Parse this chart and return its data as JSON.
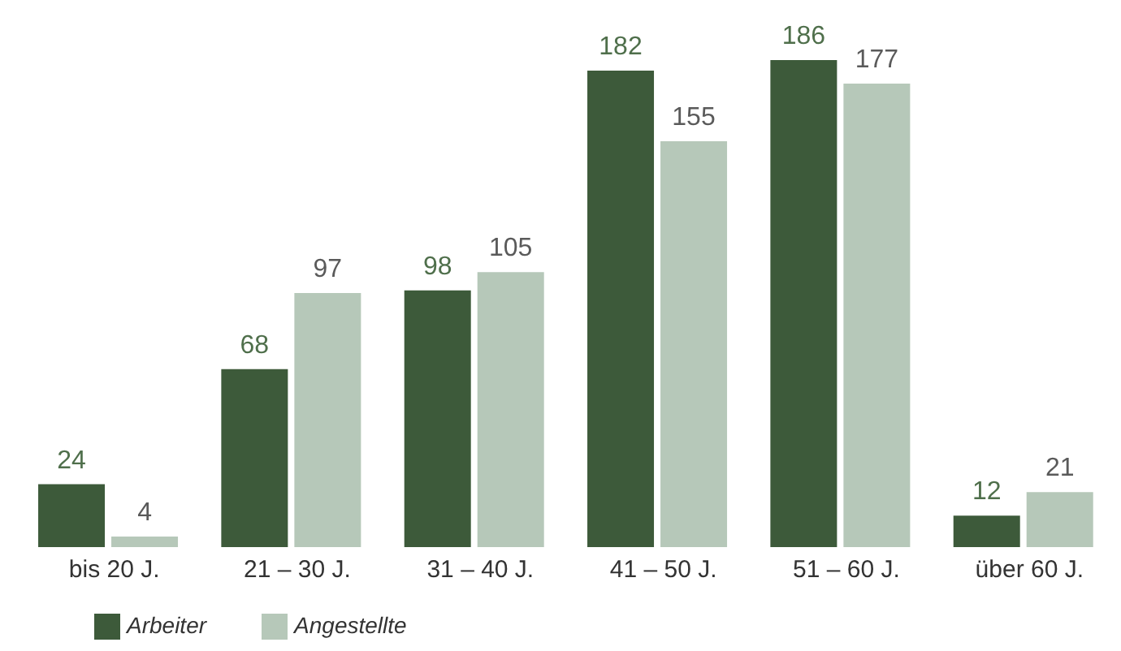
{
  "chart_data": {
    "type": "bar",
    "categories": [
      "bis 20 J.",
      "21 – 30 J.",
      "31 – 40 J.",
      "41 – 50 J.",
      "51 – 60 J.",
      "über 60 J."
    ],
    "series": [
      {
        "name": "Arbeiter",
        "color": "#3d5a3a",
        "values": [
          24,
          68,
          98,
          182,
          186,
          12
        ]
      },
      {
        "name": "Angestellte",
        "color": "#b6c8b9",
        "values": [
          4,
          97,
          105,
          155,
          177,
          21
        ]
      }
    ],
    "data_labels": true,
    "legend": "bottom left",
    "grid": false
  }
}
